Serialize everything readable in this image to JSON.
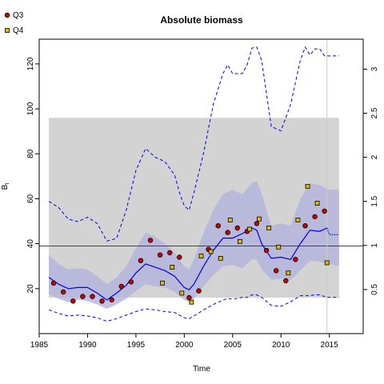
{
  "chart_data": {
    "type": "line",
    "title": "Absolute biomass",
    "xlabel": "Time",
    "ylabel": "B",
    "ylabel_subscript": "t",
    "xlim": [
      1985,
      2018.5
    ],
    "ylim": [
      0,
      131
    ],
    "y2lim": [
      0,
      3.34
    ],
    "xticks": [
      1985,
      1990,
      1995,
      2000,
      2005,
      2010,
      2015
    ],
    "yticks": [
      20,
      40,
      60,
      80,
      100,
      120
    ],
    "y2ticks": [
      0.5,
      1,
      1.5,
      2,
      2.5,
      3
    ],
    "grid": false,
    "legend_position": "top-left",
    "colors": {
      "band": "#d3d3d3",
      "ci": "#b3b3dd",
      "median": "#0000ee",
      "hline": "#444444",
      "vline": "#cccccc",
      "q3": "#cc0000",
      "q4": "#ddbb00"
    },
    "reference_band": {
      "x": [
        1986,
        2016
      ],
      "y": [
        16,
        96
      ]
    },
    "reference_hline": 39,
    "current_year_vline": 2014.75,
    "series": [
      {
        "name": "Q3",
        "kind": "points",
        "x": [
          1986.5,
          1987.5,
          1988.5,
          1989.5,
          1990.5,
          1991.5,
          1992.5,
          1993.5,
          1994.5,
          1995.5,
          1996.5,
          1997.5,
          1998.5,
          1999.5,
          2000.5,
          2001.5,
          2002.5,
          2003.5,
          2004.5,
          2005.5,
          2006.5,
          2007.5,
          2008.5,
          2009.5,
          2010.5,
          2011.5,
          2012.5,
          2013.5,
          2014.5
        ],
        "y": [
          22.5,
          18.5,
          14.5,
          16.5,
          16.5,
          14.5,
          15,
          21,
          23,
          32.5,
          41.5,
          35,
          36,
          34,
          16,
          19,
          37.5,
          48,
          45,
          47,
          45.5,
          49,
          37,
          28,
          23.5,
          33,
          48,
          52,
          54.5
        ]
      },
      {
        "name": "Q4",
        "kind": "points",
        "x": [
          1997.75,
          1998.75,
          1999.75,
          2000.75,
          2001.75,
          2002.75,
          2003.75,
          2004.75,
          2005.75,
          2006.75,
          2007.75,
          2008.75,
          2009.75,
          2010.75,
          2011.75,
          2012.75,
          2013.75,
          2014.75
        ],
        "y": [
          22.5,
          29.5,
          18,
          14,
          34.5,
          36.5,
          33.5,
          50.5,
          41,
          46.5,
          51,
          47,
          38.5,
          27,
          50.5,
          65.5,
          58,
          31.5
        ]
      },
      {
        "kind": "median",
        "x": [
          1986,
          1987,
          1988,
          1989,
          1990,
          1991,
          1992,
          1993,
          1994,
          1995,
          1996,
          1997,
          1998,
          1999,
          2000,
          2000.5,
          2001,
          2002,
          2003,
          2004,
          2005,
          2006,
          2007,
          2007.5,
          2008,
          2009,
          2010,
          2011,
          2012,
          2013,
          2014,
          2014.75,
          2015,
          2016
        ],
        "y": [
          25,
          22,
          20,
          20.5,
          20.5,
          18,
          15,
          18,
          21.5,
          27,
          31,
          29.5,
          28,
          25.5,
          20.5,
          19.5,
          22,
          30,
          37,
          42.5,
          42.5,
          44.5,
          47,
          46,
          40,
          33.5,
          34,
          33,
          40,
          46,
          45.5,
          47,
          44,
          44
        ]
      },
      {
        "kind": "ci",
        "x": [
          1986,
          1987,
          1988,
          1989,
          1990,
          1991,
          1992,
          1993,
          1994,
          1995,
          1996,
          1997,
          1998,
          1999,
          2000,
          2000.5,
          2001,
          2002,
          2003,
          2004,
          2005,
          2006,
          2007,
          2007.5,
          2008,
          2009,
          2010,
          2011,
          2012,
          2013,
          2014,
          2015,
          2016
        ],
        "upper": [
          35,
          31,
          28.5,
          29,
          28.5,
          25.5,
          22,
          25,
          30,
          38,
          45,
          43,
          40,
          36,
          30,
          28.5,
          33,
          45,
          55,
          62,
          64,
          62,
          67,
          68,
          62,
          48,
          49,
          48,
          60,
          67,
          66,
          64,
          64
        ],
        "lower": [
          17.5,
          15.5,
          14,
          15,
          14.5,
          13,
          11,
          13,
          15.5,
          19,
          22,
          21,
          20.5,
          18.5,
          15,
          14,
          15.5,
          21,
          26,
          30,
          30.5,
          29,
          33,
          33,
          28.5,
          24,
          24.5,
          24,
          28,
          32.5,
          32,
          31,
          30
        ]
      },
      {
        "kind": "fishing-mortality",
        "axis": "right",
        "x": [
          1986,
          1987,
          1988,
          1989,
          1990,
          1991,
          1992,
          1993,
          1994,
          1995,
          1996,
          1997,
          1998,
          1999,
          1999.5,
          2000,
          2000.5,
          2001,
          2002,
          2003,
          2004,
          2004.5,
          2005,
          2006,
          2006.5,
          2007,
          2007.5,
          2008,
          2009,
          2010,
          2011,
          2012,
          2012.5,
          2013,
          2013.5,
          2014,
          2014.5,
          2015,
          2016
        ],
        "upper": [
          1.5,
          1.43,
          1.3,
          1.27,
          1.32,
          1.25,
          1.05,
          1.08,
          1.4,
          1.85,
          2.1,
          2.0,
          1.95,
          1.8,
          1.6,
          1.45,
          1.4,
          1.6,
          2.05,
          2.6,
          2.95,
          3.05,
          2.95,
          2.95,
          3.05,
          3.24,
          3.25,
          3.1,
          2.35,
          2.3,
          2.6,
          3.1,
          3.25,
          3.16,
          3.23,
          3.23,
          3.15,
          3.15,
          3.15
        ],
        "lower": [
          0.27,
          0.23,
          0.2,
          0.21,
          0.2,
          0.18,
          0.14,
          0.17,
          0.21,
          0.25,
          0.28,
          0.27,
          0.25,
          0.24,
          0.21,
          0.18,
          0.17,
          0.2,
          0.27,
          0.33,
          0.38,
          0.4,
          0.39,
          0.41,
          0.41,
          0.44,
          0.44,
          0.41,
          0.32,
          0.31,
          0.36,
          0.43,
          0.43,
          0.43,
          0.44,
          0.44,
          0.42,
          0.41,
          0.41
        ]
      }
    ]
  }
}
